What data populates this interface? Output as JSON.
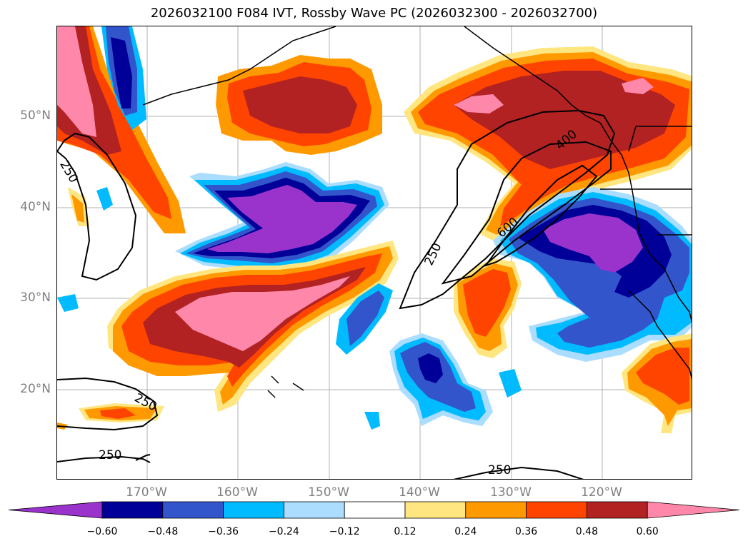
{
  "title": "2026032100 F084 IVT, Rossby Wave PC (2026032300 - 2026032700)",
  "lat_labels": [
    "50°N",
    "40°N",
    "30°N",
    "20°N"
  ],
  "lon_labels": [
    "170°W",
    "160°W",
    "150°W",
    "140°W",
    "130°W",
    "120°W"
  ],
  "contour_labels": [
    "250",
    "250",
    "250",
    "250",
    "250",
    "400",
    "600"
  ],
  "colorbar": {
    "tick_labels": [
      "−0.60",
      "−0.48",
      "−0.36",
      "−0.24",
      "−0.12",
      "0.12",
      "0.24",
      "0.36",
      "0.48",
      "0.60"
    ],
    "colors": [
      "#9933cc",
      "#000099",
      "#3355cc",
      "#00bbff",
      "#aaddff",
      "#ffffff",
      "#ffe680",
      "#ff9900",
      "#ff4400",
      "#b22222",
      "#ff88aa"
    ]
  },
  "map": {
    "lat_range": [
      10,
      60
    ],
    "lon_range": [
      -180,
      -110
    ],
    "ivt_contour_levels": [
      250,
      400,
      600
    ]
  }
}
